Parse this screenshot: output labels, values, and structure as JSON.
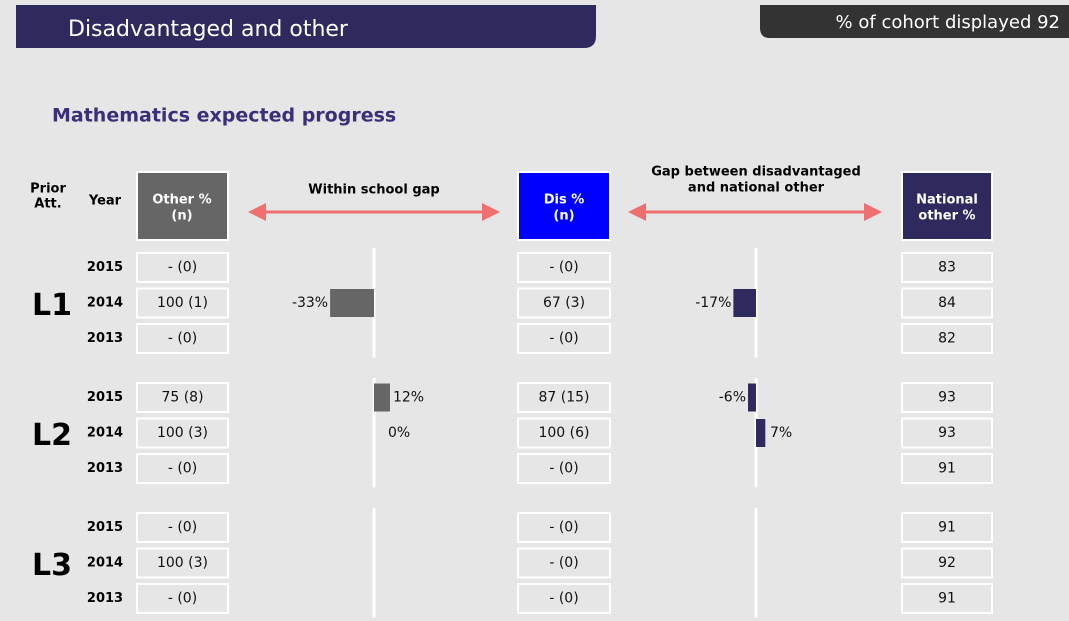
{
  "header": {
    "title": "Disadvantaged and other",
    "cohort": "% of cohort displayed 92"
  },
  "subtitle": "Mathematics expected progress",
  "columns": {
    "prior": [
      "Prior",
      "Att."
    ],
    "year": "Year",
    "other": [
      "Other %",
      "(n)"
    ],
    "dis": [
      "Dis %",
      "(n)"
    ],
    "national": [
      "National",
      "other %"
    ],
    "within_gap": "Within school gap",
    "national_gap": [
      "Gap between disadvantaged",
      "and national other"
    ]
  },
  "groups": [
    {
      "label": "L1",
      "rows": [
        {
          "year": 2015,
          "other": "- (0)",
          "dis": "- (0)",
          "national": 83
        },
        {
          "year": 2014,
          "other": "100 (1)",
          "dis": "67 (3)",
          "national": 84,
          "within_gap": -33,
          "within_gap_label": "-33%",
          "national_gap": -17,
          "national_gap_label": "-17%"
        },
        {
          "year": 2013,
          "other": "- (0)",
          "dis": "- (0)",
          "national": 82
        }
      ]
    },
    {
      "label": "L2",
      "rows": [
        {
          "year": 2015,
          "other": "75 (8)",
          "dis": "87 (15)",
          "national": 93,
          "within_gap": 12,
          "within_gap_label": "12%",
          "national_gap": -6,
          "national_gap_label": "-6%"
        },
        {
          "year": 2014,
          "other": "100 (3)",
          "dis": "100 (6)",
          "national": 93,
          "within_gap": 0,
          "within_gap_label": "0%",
          "national_gap": 7,
          "national_gap_label": "7%"
        },
        {
          "year": 2013,
          "other": "- (0)",
          "dis": "- (0)",
          "national": 91
        }
      ]
    },
    {
      "label": "L3",
      "rows": [
        {
          "year": 2015,
          "other": "- (0)",
          "dis": "- (0)",
          "national": 91
        },
        {
          "year": 2014,
          "other": "100 (3)",
          "dis": "- (0)",
          "national": 92
        },
        {
          "year": 2013,
          "other": "- (0)",
          "dis": "- (0)",
          "national": 91
        }
      ]
    }
  ]
}
